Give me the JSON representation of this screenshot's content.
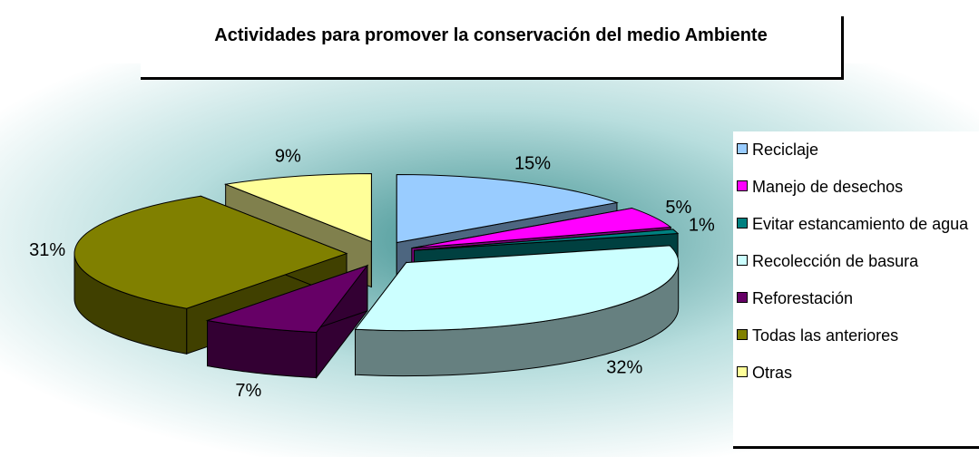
{
  "chart_data": {
    "type": "pie",
    "title": "Actividades para promover la conservación del medio Ambiente",
    "categories": [
      "Reciclaje",
      "Manejo de desechos",
      "Evitar estancamiento de agua",
      "Recolección de basura",
      "Reforestación",
      "Todas las anteriores",
      "Otras"
    ],
    "values": [
      15,
      5,
      1,
      32,
      7,
      31,
      9
    ],
    "value_labels": [
      "15%",
      "5%",
      "1%",
      "32%",
      "7%",
      "31%",
      "9%"
    ],
    "colors": [
      "#99ccff",
      "#ff00ff",
      "#008080",
      "#ccffff",
      "#660066",
      "#808000",
      "#ffff99"
    ]
  }
}
